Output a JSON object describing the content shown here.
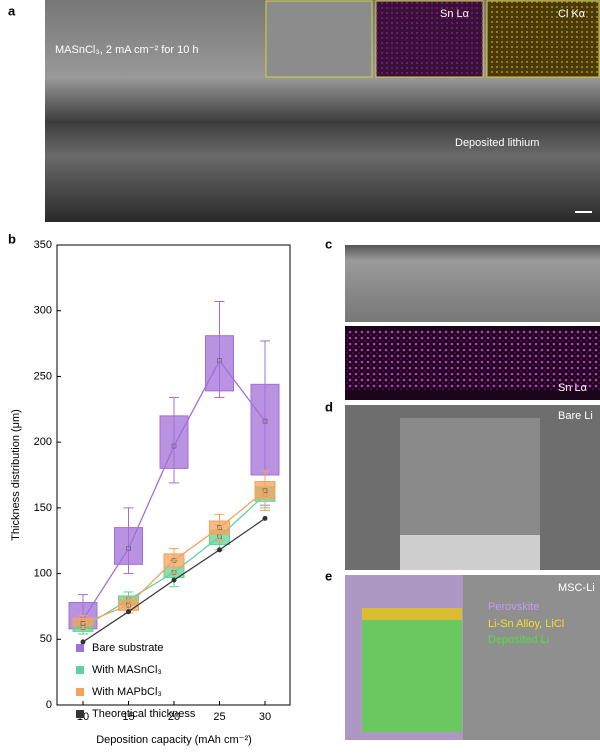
{
  "panels": {
    "a": {
      "label": "a",
      "caption": "MASnCl₃, 2 mA cm⁻² for 10 h",
      "inset_1": "Sn Lα",
      "inset_2": "Cl Kα",
      "layer": "Deposited lithium"
    },
    "c": {
      "label": "c",
      "map": "Sn Lα"
    },
    "d": {
      "label": "d",
      "caption": "Bare Li"
    },
    "e": {
      "label": "e",
      "caption": "MSC-Li",
      "layers": [
        "Perovskite",
        "Li-Sn Alloy, LiCl",
        "Deposited Li"
      ]
    }
  },
  "chart_data": {
    "type": "box",
    "panel_label": "b",
    "x_label": "Deposition capacity (mAh cm⁻²)",
    "y_label": "Thickness distribution (μm)",
    "categories": [
      "10",
      "15",
      "20",
      "25",
      "30"
    ],
    "ylim": [
      0,
      350
    ],
    "yticks": [
      0,
      50,
      100,
      150,
      200,
      250,
      300,
      350
    ],
    "series": [
      {
        "name": "Bare substrate",
        "color": "#a26fd8",
        "boxes": [
          {
            "min": 54,
            "q1": 58,
            "mean": 65,
            "q3": 78,
            "max": 84
          },
          {
            "min": 100,
            "q1": 107,
            "mean": 119,
            "q3": 135,
            "max": 150
          },
          {
            "min": 169,
            "q1": 180,
            "mean": 197,
            "q3": 220,
            "max": 234
          },
          {
            "min": 234,
            "q1": 239,
            "mean": 262,
            "q3": 281,
            "max": 307
          },
          {
            "min": 152,
            "q1": 175,
            "mean": 216,
            "q3": 244,
            "max": 277
          }
        ]
      },
      {
        "name": "With MASnCl₃",
        "color": "#5fd39a",
        "boxes": [
          {
            "min": 54,
            "q1": 56,
            "mean": 59,
            "q3": 62,
            "max": 64
          },
          {
            "min": 73,
            "q1": 76,
            "mean": 80,
            "q3": 83,
            "max": 86
          },
          {
            "min": 90,
            "q1": 97,
            "mean": 101,
            "q3": 105,
            "max": 110
          },
          {
            "min": 118,
            "q1": 122,
            "mean": 128,
            "q3": 133,
            "max": 137
          },
          {
            "min": 150,
            "q1": 155,
            "mean": 160,
            "q3": 166,
            "max": 170
          }
        ]
      },
      {
        "name": "With MAPbCl₃",
        "color": "#f5a35c",
        "boxes": [
          {
            "min": 58,
            "q1": 60,
            "mean": 62,
            "q3": 66,
            "max": 68
          },
          {
            "min": 70,
            "q1": 72,
            "mean": 76,
            "q3": 80,
            "max": 82
          },
          {
            "min": 100,
            "q1": 105,
            "mean": 110,
            "q3": 115,
            "max": 119
          },
          {
            "min": 125,
            "q1": 130,
            "mean": 135,
            "q3": 140,
            "max": 145
          },
          {
            "min": 148,
            "q1": 157,
            "mean": 163,
            "q3": 170,
            "max": 178
          }
        ]
      },
      {
        "name": "Theoretical thickness",
        "color": "#333333",
        "values": [
          48,
          71,
          95,
          118,
          142
        ]
      }
    ]
  }
}
